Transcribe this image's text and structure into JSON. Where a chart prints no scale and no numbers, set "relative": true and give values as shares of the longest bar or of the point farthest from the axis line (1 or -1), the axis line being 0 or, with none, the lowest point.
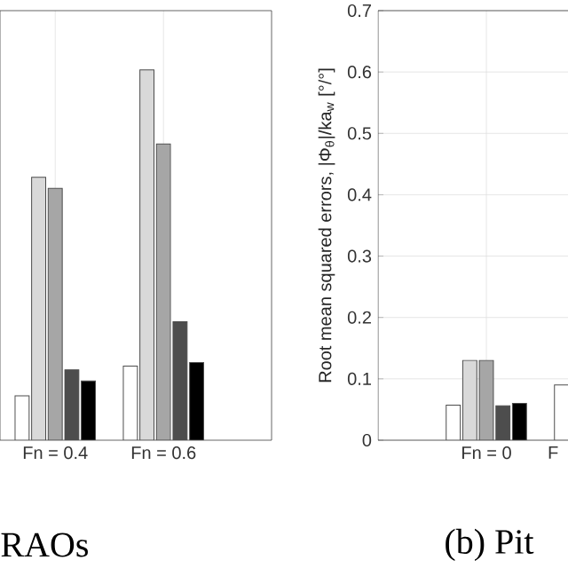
{
  "chart_data": [
    {
      "type": "bar",
      "relative": true,
      "categories": [
        "Fn = 0.4",
        "Fn = 0.6"
      ],
      "grid": "x",
      "annotations": [
        "RAOs"
      ],
      "series": [
        {
          "color": "#ffffff",
          "values": [
            0.12,
            0.2
          ]
        },
        {
          "color": "#d9d9d9",
          "values": [
            0.71,
            1
          ]
        },
        {
          "color": "#a6a6a6",
          "values": [
            0.68,
            0.8
          ]
        },
        {
          "color": "#4d4d4d",
          "values": [
            0.19,
            0.32
          ]
        },
        {
          "color": "#000000",
          "values": [
            0.16,
            0.21
          ]
        }
      ]
    },
    {
      "type": "bar",
      "categories": [
        "Fn = 0",
        "F"
      ],
      "ylabel": "Root mean squared errors, |Φ$_{θ}$|/ka$_{w}$ [°/°]",
      "ylim": [
        0,
        0.7
      ],
      "yticks": [
        0,
        0.1,
        0.2,
        0.3,
        0.4,
        0.5,
        0.6,
        0.7
      ],
      "grid": true,
      "annotations": [
        "(b) Pit"
      ],
      "series": [
        {
          "color": "#ffffff",
          "values": [
            0.057,
            0.09
          ]
        },
        {
          "color": "#d9d9d9",
          "values": [
            0.13,
            null
          ]
        },
        {
          "color": "#a6a6a6",
          "values": [
            0.13,
            null
          ]
        },
        {
          "color": "#4d4d4d",
          "values": [
            0.056,
            null
          ]
        },
        {
          "color": "#000000",
          "values": [
            0.06,
            null
          ]
        }
      ]
    }
  ]
}
